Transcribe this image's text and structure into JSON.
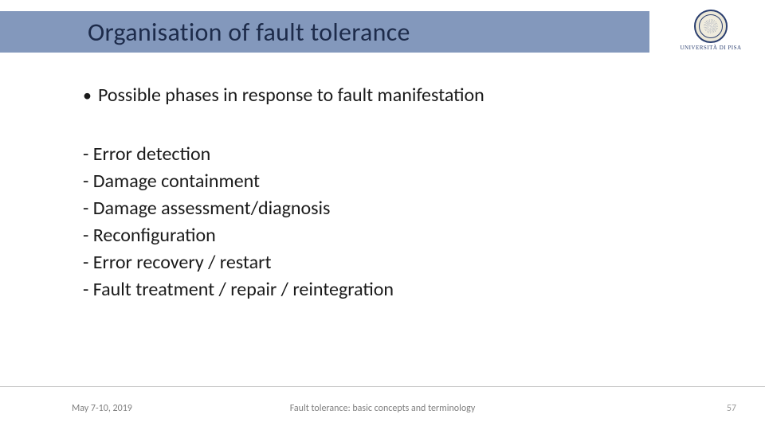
{
  "colors": {
    "title_bar_bg": "#8398bc",
    "title_text": "#1d2b4a",
    "body_text": "#1a1a1a",
    "footer_text": "#7f7f7f",
    "page_number": "#9b9b9b",
    "divider": "#c7c7c7",
    "logo_primary": "#2a3e6f"
  },
  "title": "Organisation of fault tolerance",
  "logo": {
    "caption": "UNIVERSITÀ DI PISA"
  },
  "bullet": {
    "marker": "•",
    "text": "Possible phases in response to fault manifestation"
  },
  "phases": [
    "- Error detection",
    "- Damage containment",
    "- Damage assessment/diagnosis",
    "- Reconfiguration",
    "- Error recovery / restart",
    "- Fault treatment / repair / reintegration"
  ],
  "footer": {
    "date": "May 7-10, 2019",
    "subject": "Fault tolerance: basic concepts and terminology",
    "page": "57"
  }
}
